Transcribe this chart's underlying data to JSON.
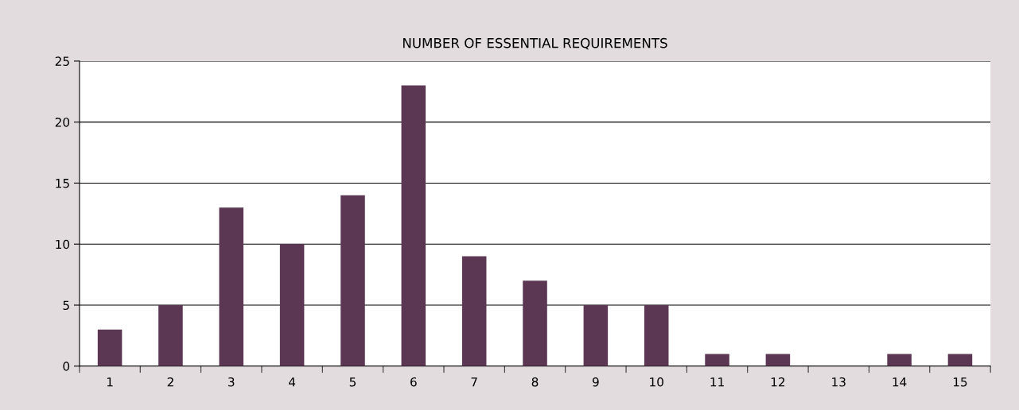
{
  "chart_data": {
    "type": "bar",
    "title": "NUMBER OF ESSENTIAL REQUIREMENTS",
    "categories": [
      "1",
      "2",
      "3",
      "4",
      "5",
      "6",
      "7",
      "8",
      "9",
      "10",
      "11",
      "12",
      "13",
      "14",
      "15"
    ],
    "values": [
      3,
      5,
      13,
      10,
      14,
      23,
      9,
      7,
      5,
      5,
      1,
      1,
      0,
      1,
      1
    ],
    "color": "#5b3753",
    "ylim": [
      0,
      25
    ],
    "yticks": [
      0,
      5,
      10,
      15,
      20,
      25
    ],
    "grid": "y",
    "legend": false
  }
}
